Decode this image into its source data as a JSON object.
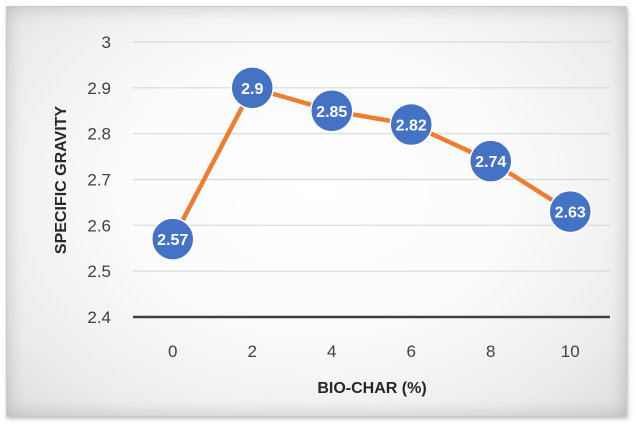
{
  "chart_data": {
    "type": "line",
    "title": "",
    "xlabel": "BIO-CHAR (%)",
    "ylabel": "SPECIFIC GRAVITY",
    "x": [
      "0",
      "2",
      "4",
      "6",
      "8",
      "10"
    ],
    "values": [
      2.57,
      2.9,
      2.85,
      2.82,
      2.74,
      2.63
    ],
    "data_labels": [
      "2.57",
      "2.9",
      "2.85",
      "2.82",
      "2.74",
      "2.63"
    ],
    "y_ticks": [
      "2.4",
      "2.5",
      "2.6",
      "2.7",
      "2.8",
      "2.9",
      "3"
    ],
    "ylim": [
      2.4,
      3.0
    ],
    "grid": true,
    "legend": "none",
    "colors": {
      "line": "#ED7D31",
      "marker": "#4472C4",
      "marker_border": "#ffffff",
      "gridline": "#d9d9d9",
      "baseline": "#404040"
    }
  }
}
